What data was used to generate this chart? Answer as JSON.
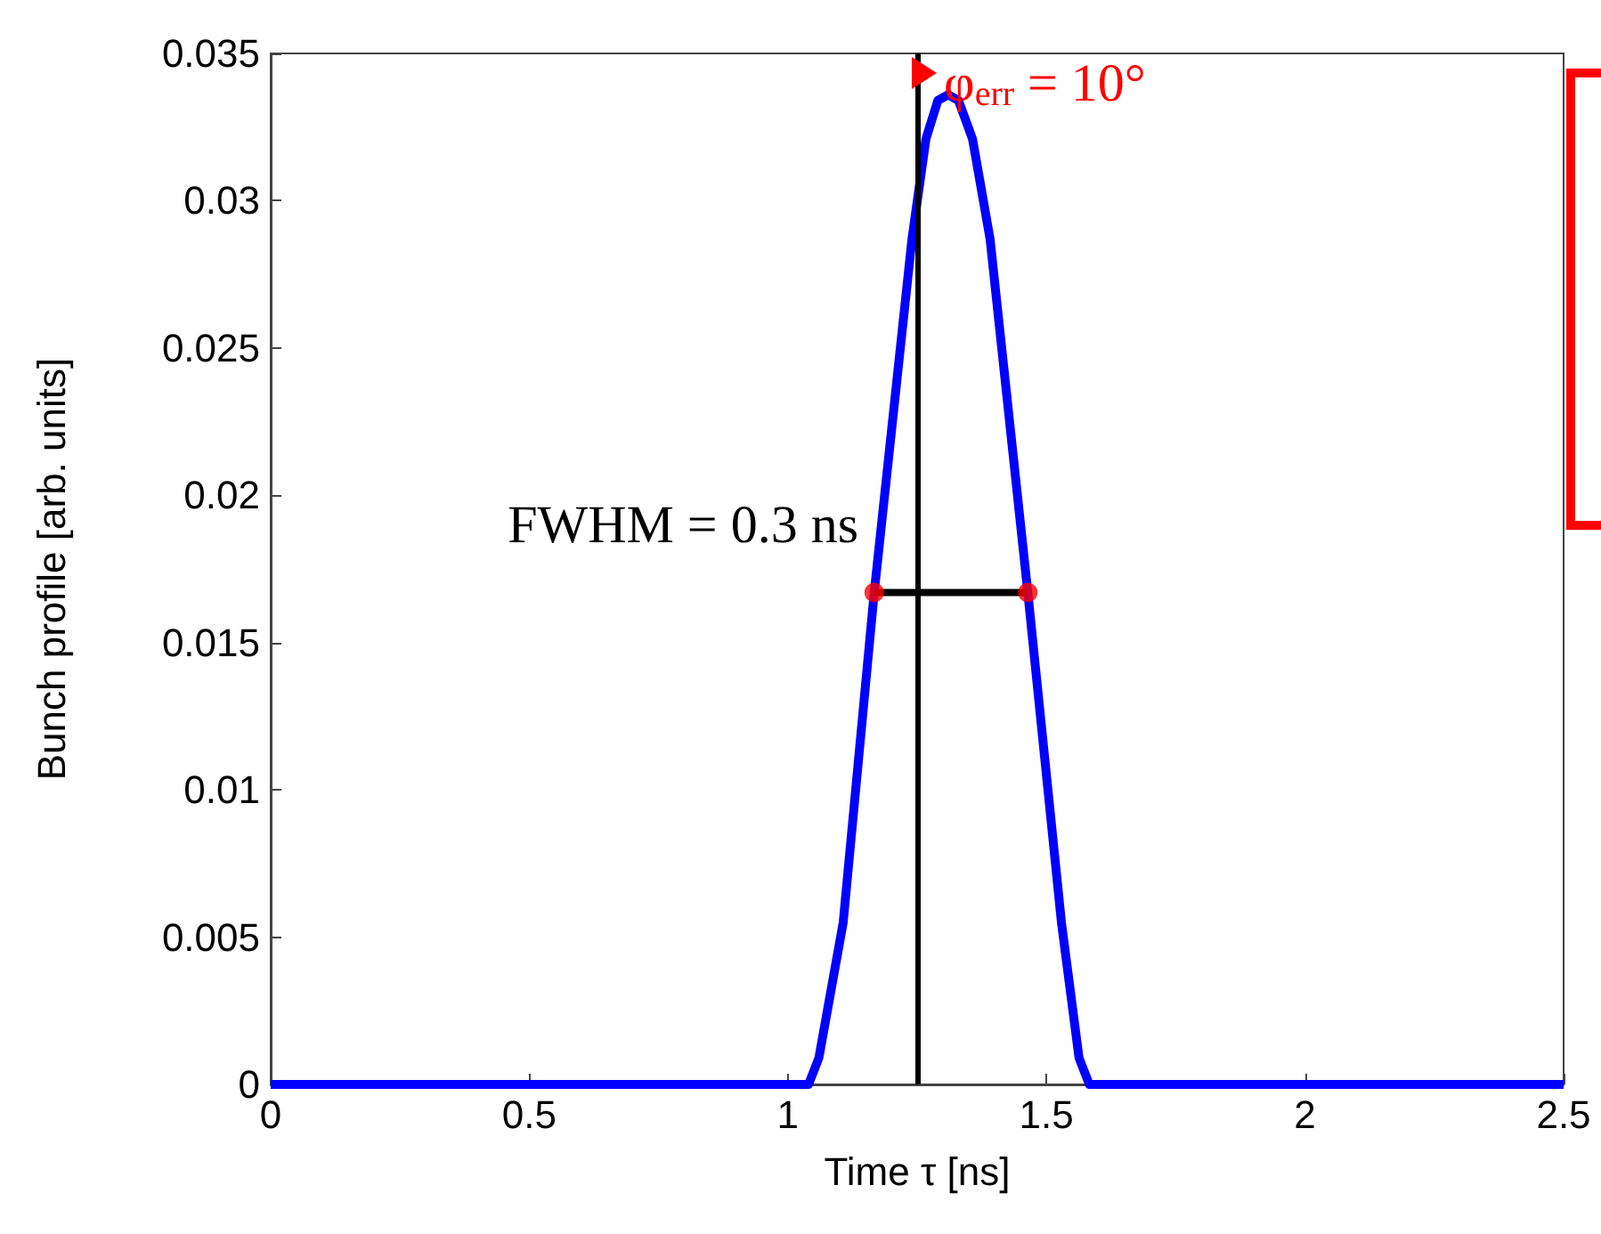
{
  "chart_data": {
    "type": "line",
    "xlabel": "Time τ [ns]",
    "ylabel": "Bunch profile [arb. units]",
    "xlim": [
      0,
      2.5
    ],
    "xticks": [
      0,
      0.5,
      1,
      1.5,
      2,
      2.5
    ],
    "ylim": [
      0,
      0.035
    ],
    "yticks": [
      0,
      0.005,
      0.01,
      0.015,
      0.02,
      0.025,
      0.03,
      0.035
    ],
    "grid": false,
    "marker": "none",
    "series": [
      {
        "color": "#0000ff",
        "x": [
          0,
          1.04,
          1.06,
          1.107,
          1.167,
          1.24,
          1.267,
          1.29,
          1.31,
          1.33,
          1.357,
          1.391,
          1.464,
          1.529,
          1.563,
          1.583,
          2.5
        ],
        "values": [
          0,
          0,
          0.0009,
          0.0055,
          0.0167,
          0.0287,
          0.0321,
          0.0334,
          0.0336,
          0.0334,
          0.0321,
          0.0287,
          0.0167,
          0.0055,
          0.0009,
          0,
          0
        ]
      },
      {
        "type": "line",
        "color": "#000000",
        "x": [
          1.167,
          1.464
        ],
        "values": [
          0.0167,
          0.0167
        ]
      },
      {
        "type": "scatter",
        "color": "#ff0000",
        "marker": "circle",
        "x": [
          1.167,
          1.464
        ],
        "values": [
          0.0167,
          0.0167
        ]
      }
    ],
    "ref_lines": [
      {
        "axis": "x",
        "value": 1.25,
        "color": "#000000"
      }
    ],
    "annotations": [
      "FWHM = 0.3 ns",
      "φ$_{err}$ = 10°"
    ]
  }
}
